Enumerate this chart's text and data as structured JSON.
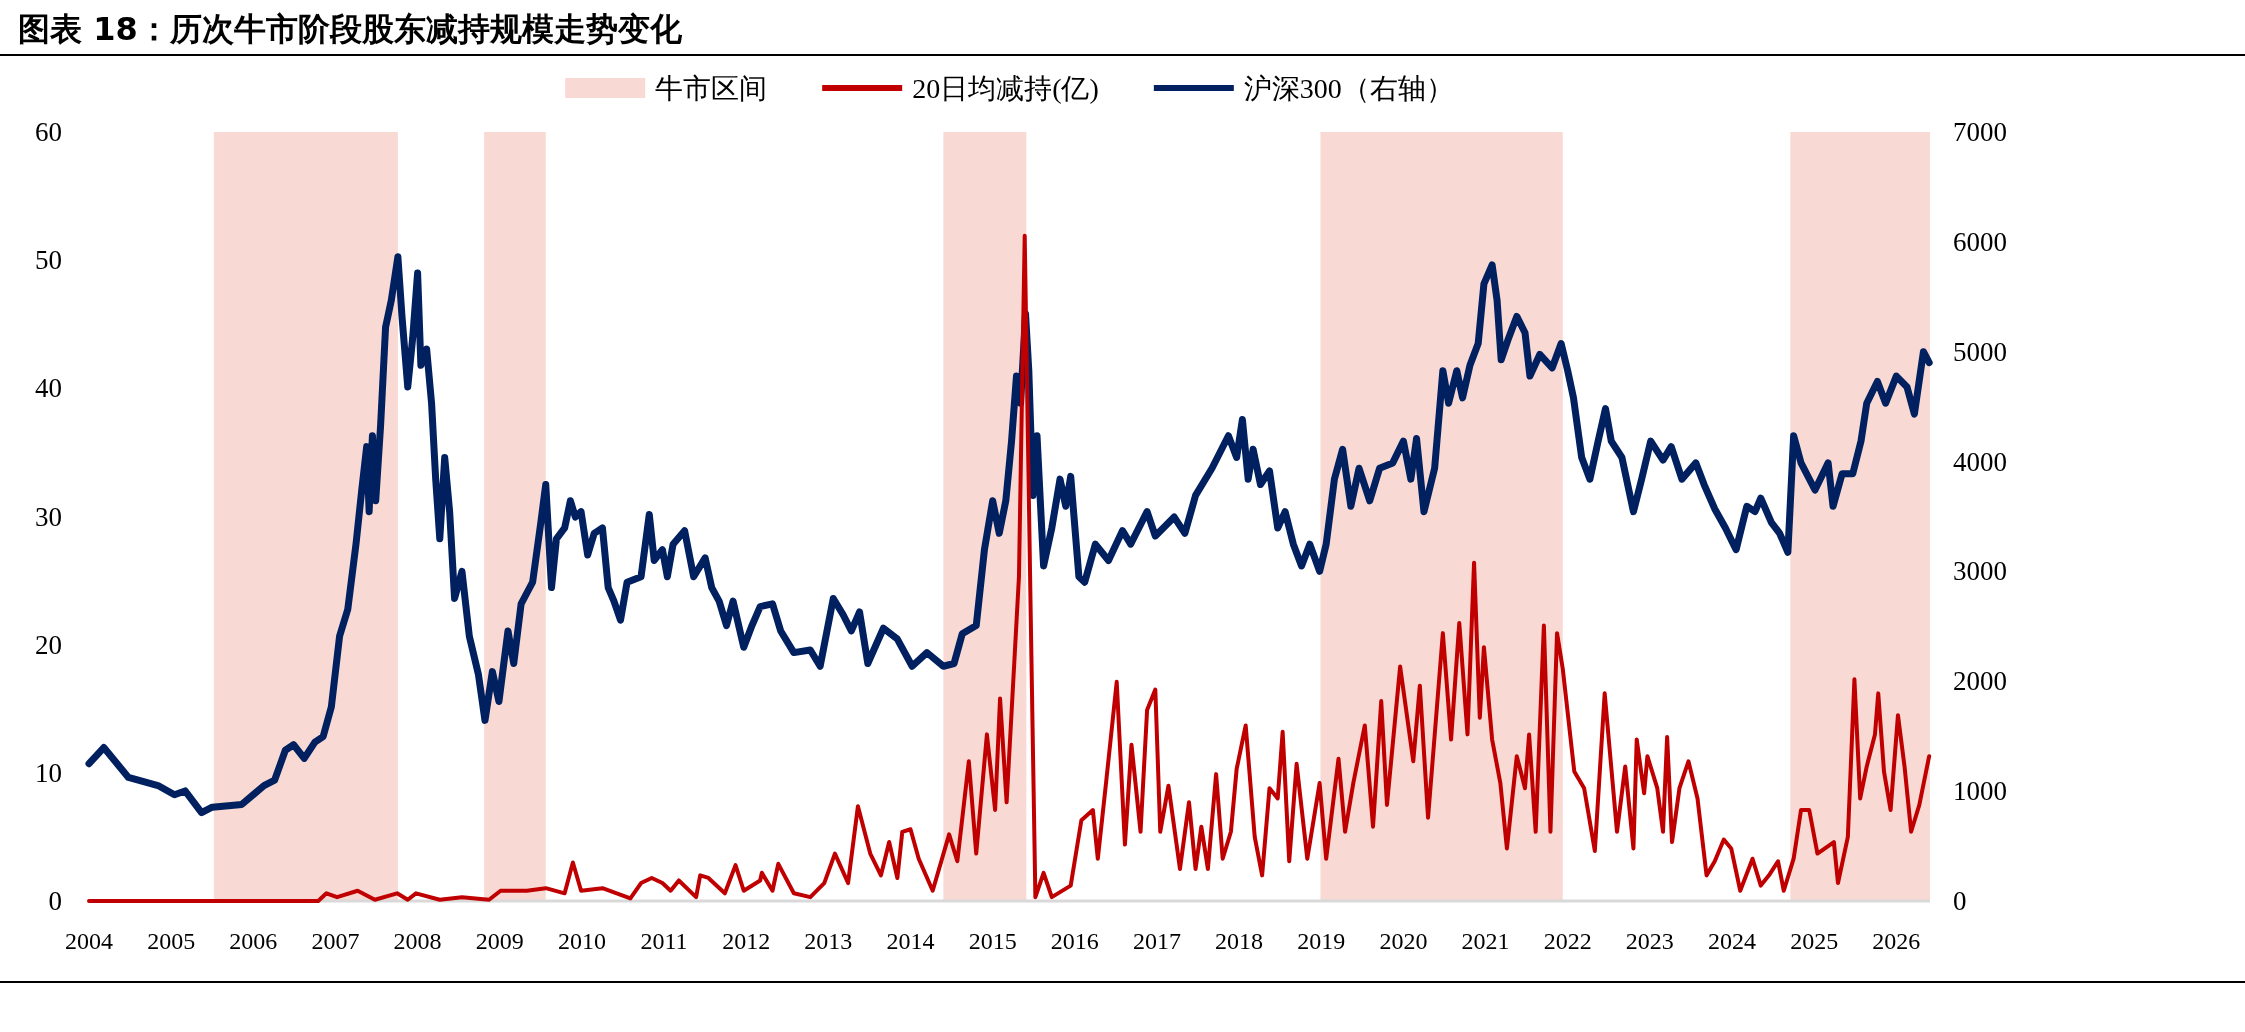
{
  "chart_data": {
    "type": "line",
    "title": "图表 18：历次牛市阶段股东减持规模走势变化",
    "xlim": [
      2004,
      2026.41
    ],
    "xticks": [
      2004,
      2005,
      2006,
      2007,
      2008,
      2009,
      2010,
      2011,
      2012,
      2013,
      2014,
      2015,
      2016,
      2017,
      2018,
      2019,
      2020,
      2021,
      2022,
      2023,
      2024,
      2025,
      2026
    ],
    "ylim": [
      0,
      60
    ],
    "yticks": [
      0,
      10,
      20,
      30,
      40,
      50,
      60
    ],
    "y2lim": [
      0,
      7000
    ],
    "y2ticks": [
      0,
      1000,
      2000,
      3000,
      4000,
      5000,
      6000,
      7000
    ],
    "legend": "top",
    "grid": false,
    "marker": "none",
    "line_style": "solid",
    "bands": [
      {
        "axis": "x",
        "from": 2005.52,
        "to": 2007.76,
        "label": "牛市区间",
        "color": "#f9d9d3"
      },
      {
        "axis": "x",
        "from": 2008.81,
        "to": 2009.56,
        "color": "#f9d9d3"
      },
      {
        "axis": "x",
        "from": 2014.4,
        "to": 2015.41,
        "color": "#f9d9d3"
      },
      {
        "axis": "x",
        "from": 2018.99,
        "to": 2021.94,
        "color": "#f9d9d3"
      },
      {
        "axis": "x",
        "from": 2024.71,
        "to": 2026.41,
        "color": "#f9d9d3"
      }
    ],
    "series": [
      {
        "name": "20日均减持(亿)",
        "color": "#c00000",
        "axis": "y",
        "x": [
          2004.0,
          2006.79,
          2006.89,
          2007.02,
          2007.27,
          2007.48,
          2007.75,
          2007.88,
          2007.98,
          2008.27,
          2008.54,
          2008.87,
          2009.01,
          2009.33,
          2009.56,
          2009.79,
          2009.89,
          2009.99,
          2010.25,
          2010.59,
          2010.72,
          2010.85,
          2010.98,
          2011.08,
          2011.18,
          2011.39,
          2011.44,
          2011.54,
          2011.74,
          2011.87,
          2011.97,
          2012.17,
          2012.19,
          2012.32,
          2012.39,
          2012.58,
          2012.78,
          2012.95,
          2013.08,
          2013.24,
          2013.36,
          2013.51,
          2013.64,
          2013.74,
          2013.84,
          2013.9,
          2014.0,
          2014.1,
          2014.27,
          2014.47,
          2014.57,
          2014.71,
          2014.8,
          2014.93,
          2015.03,
          2015.09,
          2015.17,
          2015.23,
          2015.32,
          2015.39,
          2015.46,
          2015.52,
          2015.62,
          2015.72,
          2015.95,
          2016.08,
          2016.22,
          2016.28,
          2016.38,
          2016.51,
          2016.61,
          2016.69,
          2016.8,
          2016.88,
          2016.98,
          2017.04,
          2017.14,
          2017.28,
          2017.39,
          2017.47,
          2017.54,
          2017.62,
          2017.72,
          2017.8,
          2017.9,
          2017.97,
          2018.08,
          2018.19,
          2018.28,
          2018.37,
          2018.47,
          2018.53,
          2018.61,
          2018.7,
          2018.83,
          2018.98,
          2019.06,
          2019.21,
          2019.29,
          2019.39,
          2019.53,
          2019.63,
          2019.73,
          2019.8,
          2019.96,
          2020.12,
          2020.2,
          2020.3,
          2020.48,
          2020.58,
          2020.68,
          2020.78,
          2020.86,
          2020.93,
          2020.98,
          2021.08,
          2021.18,
          2021.26,
          2021.38,
          2021.48,
          2021.53,
          2021.61,
          2021.71,
          2021.79,
          2021.87,
          2021.94,
          2022.08,
          2022.2,
          2022.33,
          2022.45,
          2022.6,
          2022.7,
          2022.8,
          2022.84,
          2022.93,
          2022.97,
          2023.09,
          2023.16,
          2023.21,
          2023.27,
          2023.36,
          2023.47,
          2023.58,
          2023.69,
          2023.79,
          2023.9,
          2023.99,
          2024.1,
          2024.25,
          2024.35,
          2024.45,
          2024.56,
          2024.63,
          2024.75,
          2024.84,
          2024.94,
          2025.04,
          2025.24,
          2025.29,
          2025.41,
          2025.49,
          2025.56,
          2025.64,
          2025.74,
          2025.78,
          2025.85,
          2025.93,
          2026.02,
          2026.1,
          2026.18,
          2026.28,
          2026.4
        ],
        "values": [
          0,
          0,
          0.6,
          0.3,
          0.8,
          0.1,
          0.6,
          0.1,
          0.6,
          0.1,
          0.3,
          0.1,
          0.8,
          0.8,
          1.0,
          0.6,
          3.0,
          0.8,
          1.0,
          0.2,
          1.4,
          1.8,
          1.4,
          0.8,
          1.6,
          0.3,
          2.0,
          1.8,
          0.6,
          2.8,
          0.8,
          1.6,
          2.2,
          0.8,
          2.9,
          0.6,
          0.3,
          1.4,
          3.7,
          1.4,
          7.4,
          3.7,
          2.0,
          4.6,
          1.8,
          5.4,
          5.6,
          3.3,
          0.8,
          5.2,
          3.1,
          10.9,
          3.7,
          13.0,
          7.1,
          15.8,
          7.7,
          14.7,
          25.3,
          51.9,
          23.6,
          0.3,
          2.2,
          0.3,
          1.2,
          6.3,
          7.1,
          3.3,
          9.2,
          17.1,
          4.4,
          12.2,
          5.4,
          14.9,
          16.5,
          5.4,
          9.0,
          2.5,
          7.7,
          2.5,
          5.8,
          2.5,
          9.9,
          3.3,
          5.4,
          10.3,
          13.7,
          5.0,
          2.0,
          8.8,
          8.0,
          13.2,
          3.1,
          10.7,
          3.3,
          9.2,
          3.3,
          11.1,
          5.4,
          9.2,
          13.7,
          5.8,
          15.6,
          7.5,
          18.3,
          10.9,
          16.8,
          6.5,
          20.9,
          12.6,
          21.7,
          13.0,
          26.4,
          14.3,
          19.8,
          12.6,
          9.2,
          4.1,
          11.3,
          8.8,
          13.0,
          5.4,
          21.5,
          5.4,
          20.9,
          18.1,
          10.1,
          8.8,
          3.9,
          16.2,
          5.4,
          10.5,
          4.1,
          12.6,
          8.4,
          11.3,
          8.8,
          5.4,
          12.8,
          4.6,
          8.8,
          10.9,
          8.0,
          2.0,
          3.1,
          4.8,
          4.1,
          0.8,
          3.3,
          1.2,
          2.0,
          3.1,
          0.8,
          3.3,
          7.1,
          7.1,
          3.7,
          4.6,
          1.4,
          5.0,
          17.3,
          8.0,
          10.5,
          13.0,
          16.2,
          10.1,
          7.1,
          14.5,
          10.5,
          5.4,
          7.5,
          11.3
        ]
      },
      {
        "name": "沪深300（右轴）",
        "color": "#002060",
        "axis": "y2",
        "x": [
          2004.0,
          2004.18,
          2004.48,
          2004.84,
          2005.04,
          2005.17,
          2005.37,
          2005.5,
          2005.86,
          2006.13,
          2006.26,
          2006.39,
          2006.49,
          2006.62,
          2006.75,
          2006.85,
          2006.95,
          2007.05,
          2007.15,
          2007.25,
          2007.32,
          2007.38,
          2007.41,
          2007.45,
          2007.49,
          2007.55,
          2007.61,
          2007.68,
          2007.76,
          2007.81,
          2007.88,
          2007.94,
          2008.0,
          2008.04,
          2008.11,
          2008.17,
          2008.22,
          2008.27,
          2008.33,
          2008.39,
          2008.45,
          2008.54,
          2008.63,
          2008.74,
          2008.82,
          2008.91,
          2008.99,
          2009.1,
          2009.17,
          2009.26,
          2009.4,
          2009.5,
          2009.56,
          2009.63,
          2009.69,
          2009.79,
          2009.86,
          2009.92,
          2009.99,
          2010.07,
          2010.15,
          2010.25,
          2010.32,
          2010.39,
          2010.47,
          2010.55,
          2010.72,
          2010.82,
          2010.88,
          2010.98,
          2011.04,
          2011.11,
          2011.25,
          2011.36,
          2011.5,
          2011.58,
          2011.67,
          2011.76,
          2011.84,
          2011.97,
          2012.07,
          2012.17,
          2012.32,
          2012.42,
          2012.58,
          2012.78,
          2012.9,
          2013.06,
          2013.18,
          2013.28,
          2013.38,
          2013.48,
          2013.67,
          2013.84,
          2014.02,
          2014.2,
          2014.4,
          2014.53,
          2014.63,
          2014.8,
          2014.9,
          2015.0,
          2015.08,
          2015.16,
          2015.23,
          2015.29,
          2015.34,
          2015.4,
          2015.44,
          2015.49,
          2015.54,
          2015.62,
          2015.72,
          2015.82,
          2015.89,
          2015.95,
          2016.05,
          2016.12,
          2016.25,
          2016.41,
          2016.58,
          2016.68,
          2016.88,
          2016.98,
          2017.21,
          2017.34,
          2017.47,
          2017.67,
          2017.87,
          2017.97,
          2018.04,
          2018.11,
          2018.17,
          2018.26,
          2018.37,
          2018.47,
          2018.56,
          2018.66,
          2018.76,
          2018.86,
          2018.98,
          2019.06,
          2019.16,
          2019.26,
          2019.36,
          2019.46,
          2019.59,
          2019.71,
          2019.87,
          2020.0,
          2020.09,
          2020.16,
          2020.25,
          2020.38,
          2020.48,
          2020.55,
          2020.65,
          2020.72,
          2020.81,
          2020.91,
          2020.98,
          2021.08,
          2021.14,
          2021.19,
          2021.28,
          2021.38,
          2021.48,
          2021.54,
          2021.66,
          2021.81,
          2021.92,
          2022.0,
          2022.07,
          2022.17,
          2022.27,
          2022.37,
          2022.46,
          2022.53,
          2022.66,
          2022.8,
          2022.9,
          2023.01,
          2023.16,
          2023.26,
          2023.39,
          2023.56,
          2023.66,
          2023.79,
          2023.92,
          2024.05,
          2024.18,
          2024.28,
          2024.35,
          2024.48,
          2024.58,
          2024.68,
          2024.75,
          2024.84,
          2025.01,
          2025.17,
          2025.23,
          2025.34,
          2025.47,
          2025.57,
          2025.64,
          2025.77,
          2025.87,
          2026.0,
          2026.13,
          2026.22,
          2026.33,
          2026.4
        ],
        "values": [
          1250,
          1397,
          1125,
          1051,
          967,
          1002,
          805,
          854,
          879,
          1051,
          1101,
          1372,
          1422,
          1298,
          1446,
          1496,
          1767,
          2409,
          2656,
          3248,
          3741,
          4136,
          3544,
          4235,
          3643,
          4334,
          5222,
          5469,
          5864,
          5321,
          4679,
          5123,
          5716,
          4876,
          5024,
          4531,
          3840,
          3297,
          4037,
          3544,
          2754,
          3001,
          2409,
          2063,
          1644,
          2088,
          1816,
          2458,
          2162,
          2705,
          2902,
          3445,
          3791,
          2853,
          3297,
          3396,
          3643,
          3495,
          3544,
          3149,
          3347,
          3396,
          2853,
          2730,
          2557,
          2902,
          2952,
          3519,
          3100,
          3198,
          2952,
          3248,
          3371,
          2952,
          3124,
          2853,
          2730,
          2507,
          2730,
          2310,
          2507,
          2680,
          2705,
          2458,
          2261,
          2285,
          2137,
          2754,
          2606,
          2458,
          2631,
          2162,
          2483,
          2384,
          2137,
          2261,
          2137,
          2162,
          2433,
          2507,
          3198,
          3643,
          3347,
          3643,
          4186,
          4778,
          4531,
          5345,
          4827,
          3692,
          4235,
          3050,
          3396,
          3840,
          3593,
          3865,
          2952,
          2902,
          3248,
          3100,
          3371,
          3248,
          3544,
          3322,
          3495,
          3347,
          3692,
          3939,
          4235,
          4037,
          4383,
          3840,
          4112,
          3791,
          3914,
          3396,
          3544,
          3248,
          3050,
          3248,
          3001,
          3248,
          3840,
          4112,
          3593,
          3939,
          3643,
          3939,
          3988,
          4186,
          3840,
          4210,
          3544,
          3939,
          4827,
          4531,
          4827,
          4580,
          4877,
          5074,
          5617,
          5790,
          5469,
          4926,
          5123,
          5321,
          5173,
          4778,
          4975,
          4852,
          5074,
          4827,
          4580,
          4037,
          3840,
          4186,
          4482,
          4186,
          4037,
          3544,
          3840,
          4186,
          4013,
          4136,
          3840,
          3988,
          3791,
          3569,
          3396,
          3198,
          3593,
          3544,
          3667,
          3445,
          3347,
          3174,
          4235,
          3988,
          3741,
          3988,
          3593,
          3889,
          3889,
          4186,
          4531,
          4729,
          4531,
          4778,
          4679,
          4432,
          5000,
          4901
        ]
      }
    ]
  }
}
